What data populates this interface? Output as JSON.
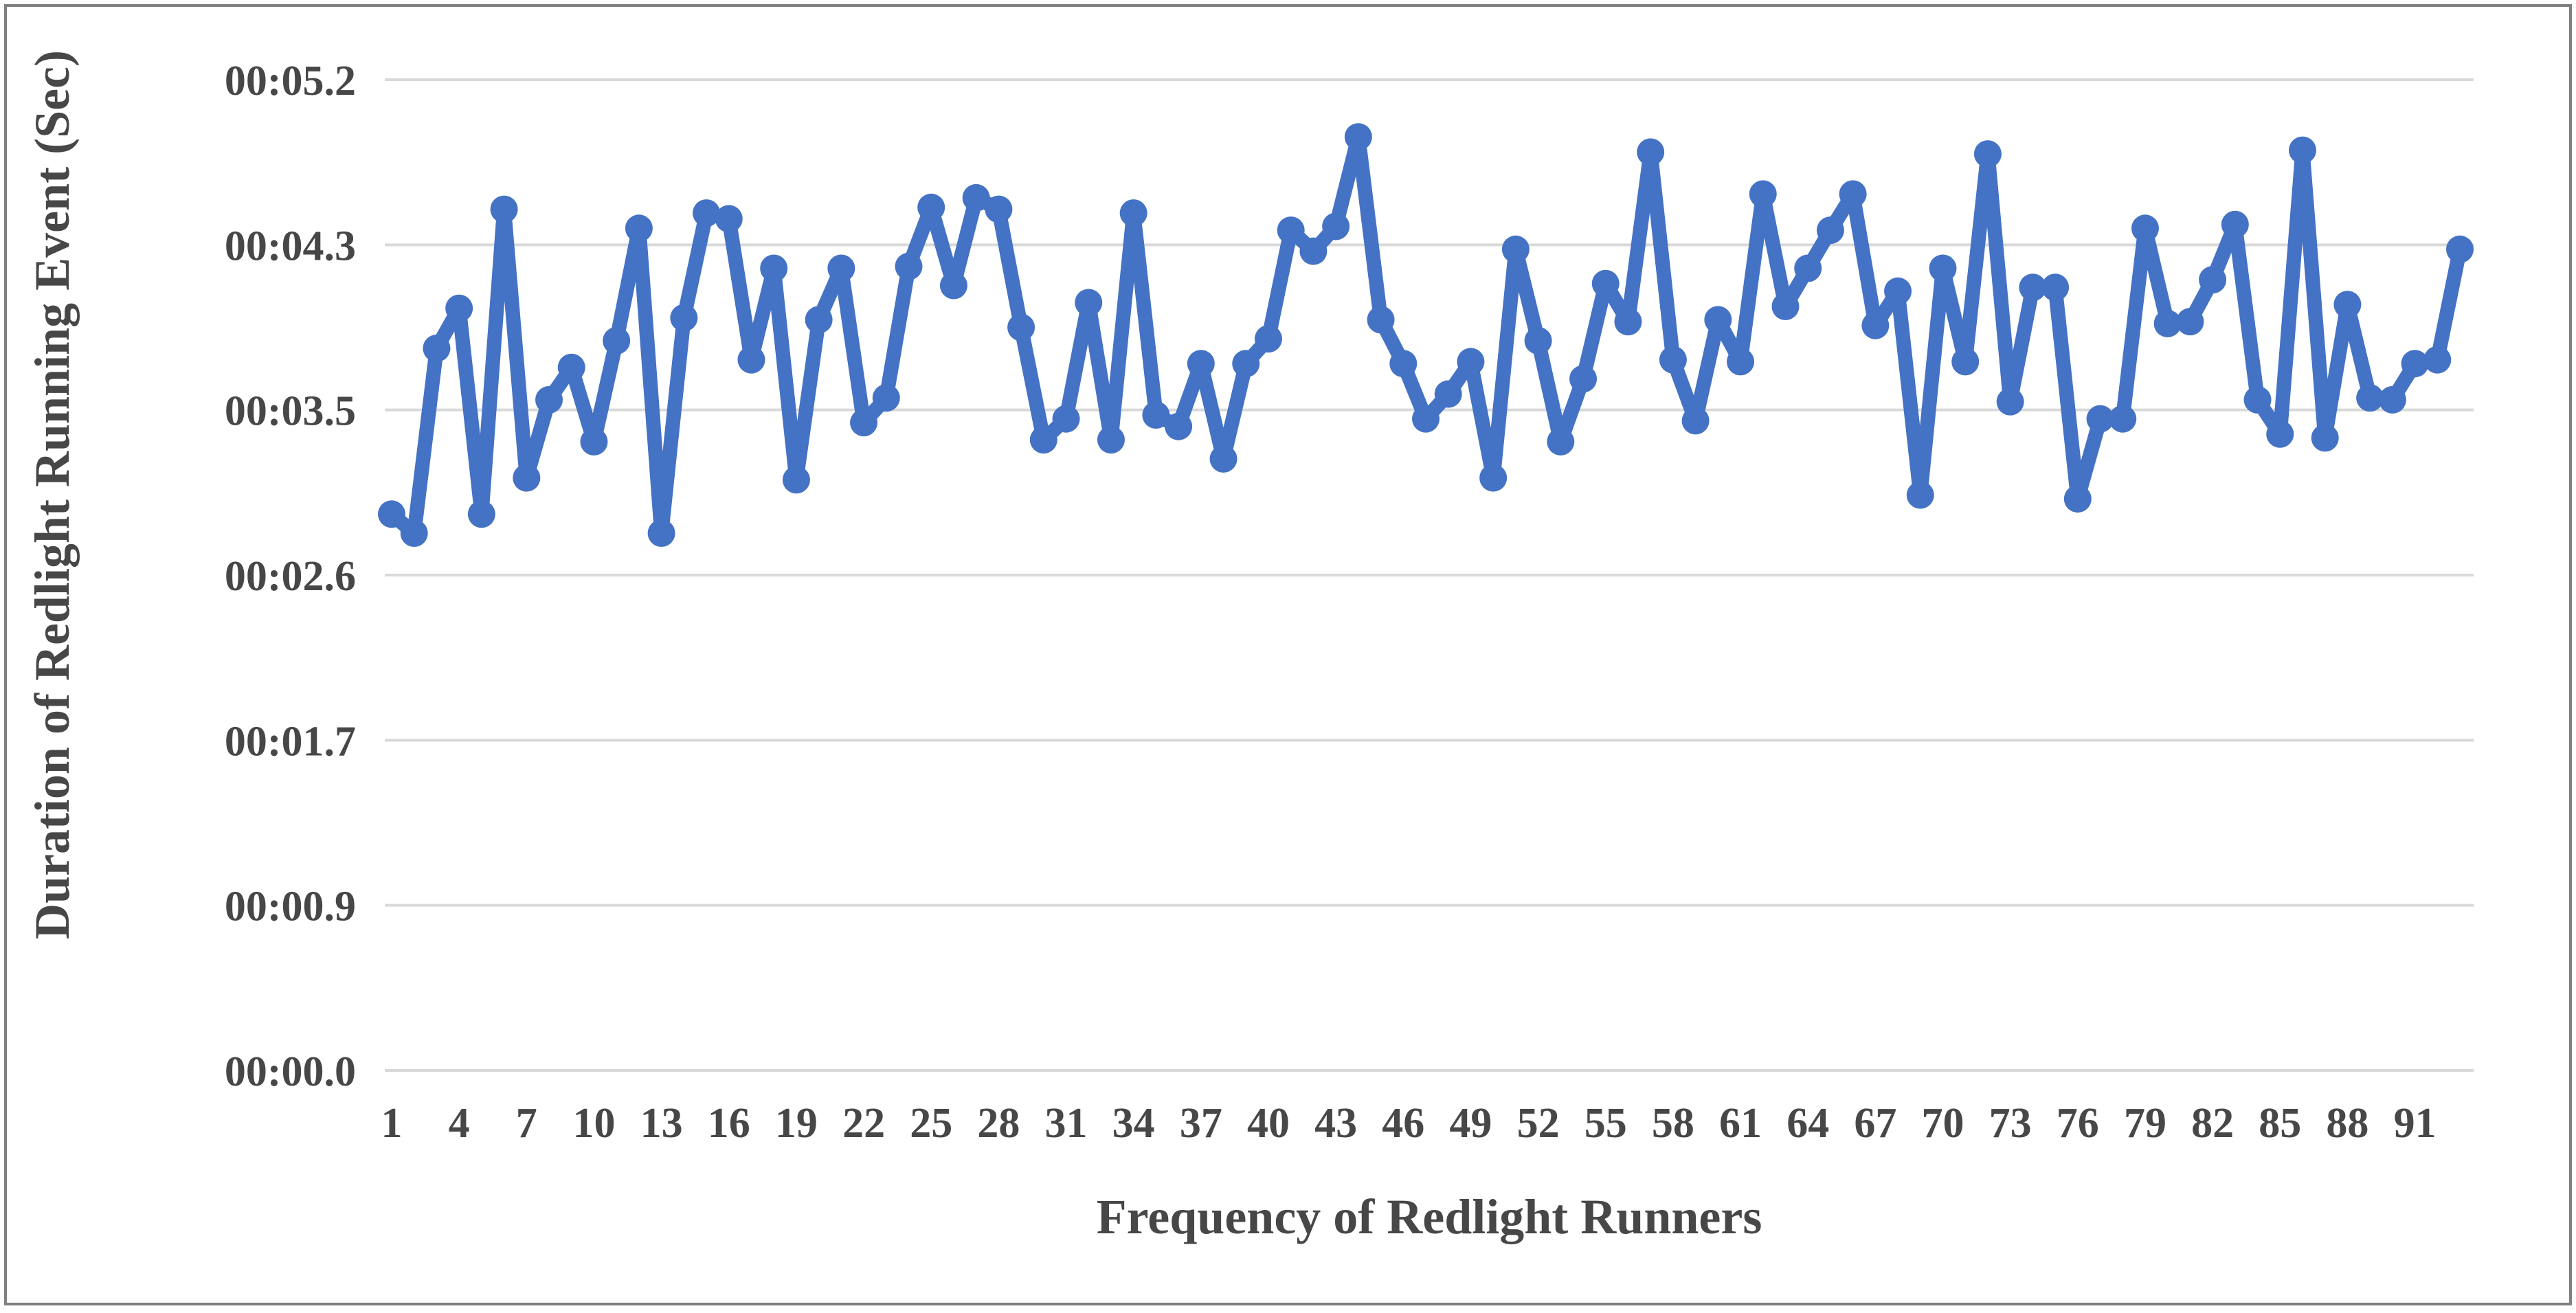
{
  "chart_data": {
    "type": "line",
    "title": "",
    "xlabel": "Frequency of Redlight Runners",
    "ylabel": "Duration of Redlight Running Event (Sec)",
    "series": [
      {
        "name": "Duration of Redlight Running Event",
        "x": [
          1,
          2,
          3,
          4,
          5,
          6,
          7,
          8,
          9,
          10,
          11,
          12,
          13,
          14,
          15,
          16,
          17,
          18,
          19,
          20,
          21,
          22,
          23,
          24,
          25,
          26,
          27,
          28,
          29,
          30,
          31,
          32,
          33,
          34,
          35,
          36,
          37,
          38,
          39,
          40,
          41,
          42,
          43,
          44,
          45,
          46,
          47,
          48,
          49,
          50,
          51,
          52,
          53,
          54,
          55,
          56,
          57,
          58,
          59,
          60,
          61,
          62,
          63,
          64,
          65,
          66,
          67,
          68,
          69,
          70,
          71,
          72,
          73,
          74,
          75,
          76,
          77,
          78,
          79,
          80,
          81,
          82,
          83,
          84,
          85,
          86,
          87,
          88,
          89,
          90,
          91,
          92,
          93
        ],
        "values_seconds": [
          2.92,
          2.82,
          3.79,
          4.0,
          2.92,
          4.52,
          3.11,
          3.52,
          3.69,
          3.3,
          3.83,
          4.42,
          2.82,
          3.95,
          4.5,
          4.47,
          3.73,
          4.21,
          3.1,
          3.94,
          4.21,
          3.4,
          3.53,
          4.22,
          4.53,
          4.12,
          4.58,
          4.52,
          3.9,
          3.31,
          3.42,
          4.03,
          3.31,
          4.5,
          3.44,
          3.38,
          3.71,
          3.21,
          3.71,
          3.84,
          4.41,
          4.3,
          4.43,
          4.9,
          3.94,
          3.71,
          3.42,
          3.55,
          3.72,
          3.11,
          4.31,
          3.83,
          3.3,
          3.63,
          4.13,
          3.93,
          4.82,
          3.73,
          3.41,
          3.94,
          3.72,
          4.6,
          4.01,
          4.21,
          4.41,
          4.6,
          3.91,
          4.09,
          3.02,
          4.21,
          3.72,
          4.81,
          3.51,
          4.11,
          4.11,
          3.0,
          3.42,
          3.42,
          4.42,
          3.92,
          3.93,
          4.15,
          4.44,
          3.52,
          3.34,
          4.83,
          3.32,
          4.02,
          3.53,
          3.52,
          3.71,
          3.73,
          4.31
        ]
      }
    ],
    "x_tick_labels": [
      "1",
      "4",
      "7",
      "10",
      "13",
      "16",
      "19",
      "22",
      "25",
      "28",
      "31",
      "34",
      "37",
      "40",
      "43",
      "46",
      "49",
      "52",
      "55",
      "58",
      "61",
      "64",
      "67",
      "70",
      "73",
      "76",
      "79",
      "82",
      "85",
      "88",
      "91"
    ],
    "x_tick_step": 3,
    "y_ticks": [
      {
        "label": "00:00.0",
        "value": 0.0
      },
      {
        "label": "00:00.9",
        "value": 0.8667
      },
      {
        "label": "00:01.7",
        "value": 1.7333
      },
      {
        "label": "00:02.6",
        "value": 2.6
      },
      {
        "label": "00:03.5",
        "value": 3.4667
      },
      {
        "label": "00:04.3",
        "value": 4.3333
      },
      {
        "label": "00:05.2",
        "value": 5.2
      }
    ],
    "ylim": [
      0,
      5.2
    ],
    "grid": true,
    "legend": false,
    "marker": "circle",
    "colors": {
      "line": "#4472C4",
      "marker": "#4472C4",
      "gridline": "#D9D9D9",
      "axis_text": "#474747",
      "background": "#FFFFFF",
      "frame_border": "#808080"
    }
  }
}
